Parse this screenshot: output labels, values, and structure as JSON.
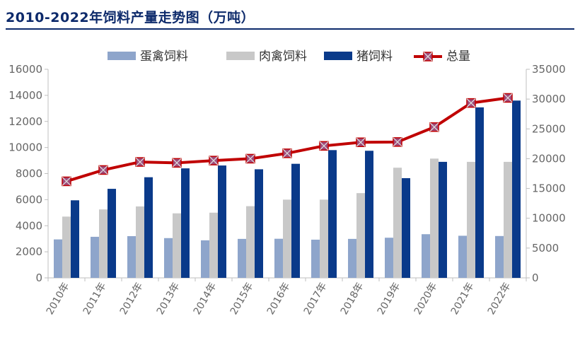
{
  "title": "2010-2022年饲料产量走势图（万吨）",
  "chart_data": {
    "type": "bar",
    "categories": [
      "2010年",
      "2011年",
      "2012年",
      "2013年",
      "2014年",
      "2015年",
      "2016年",
      "2017年",
      "2018年",
      "2019年",
      "2020年",
      "2021年",
      "2022年"
    ],
    "series": [
      {
        "name": "蛋禽饲料",
        "type": "bar",
        "axis": "left",
        "color": "#8ea5cb",
        "values": [
          2950,
          3150,
          3200,
          3050,
          2880,
          2990,
          3000,
          2930,
          2990,
          3080,
          3350,
          3230,
          3210
        ]
      },
      {
        "name": "肉禽饲料",
        "type": "bar",
        "axis": "left",
        "color": "#c8c8c8",
        "values": [
          4700,
          5250,
          5480,
          4950,
          5000,
          5500,
          6000,
          6000,
          6500,
          8450,
          9150,
          8900,
          8900
        ]
      },
      {
        "name": "猪饲料",
        "type": "bar",
        "axis": "left",
        "color": "#0a3a8a",
        "values": [
          5950,
          6830,
          7720,
          8400,
          8620,
          8330,
          8750,
          9800,
          9750,
          7650,
          8900,
          13080,
          13600
        ]
      },
      {
        "name": "总量",
        "type": "line",
        "axis": "right",
        "color": "#c00000",
        "marker_color": "#a04a7a",
        "values": [
          16200,
          18100,
          19450,
          19300,
          19680,
          20000,
          20900,
          22150,
          22750,
          22800,
          25300,
          29350,
          30200
        ]
      }
    ],
    "y_left": {
      "lim": [
        0,
        16000
      ],
      "ticks": [
        "0",
        "2000",
        "4000",
        "6000",
        "8000",
        "10000",
        "12000",
        "14000",
        "16000"
      ]
    },
    "y_right": {
      "lim": [
        0,
        35000
      ],
      "ticks": [
        "0",
        "5000",
        "10000",
        "15000",
        "20000",
        "25000",
        "30000",
        "35000"
      ]
    },
    "legend": "top-center",
    "grid": false
  }
}
